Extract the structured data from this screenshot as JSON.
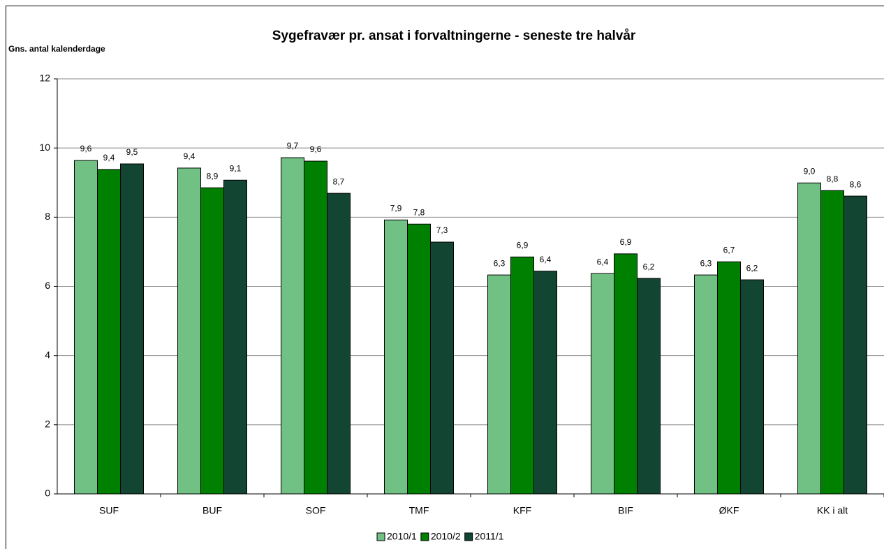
{
  "chart_data": {
    "type": "bar",
    "title": "Sygefravær pr. ansat i forvaltningerne - seneste tre halvår",
    "y_label": "Gns. antal kalenderdage",
    "categories": [
      "SUF",
      "BUF",
      "SOF",
      "TMF",
      "KFF",
      "BIF",
      "ØKF",
      "KK i alt"
    ],
    "series": [
      {
        "name": "2010/1",
        "color": "#71c184",
        "values": [
          9.64,
          9.42,
          9.72,
          7.92,
          6.33,
          6.37,
          6.33,
          8.99
        ],
        "value_labels": [
          "9,6",
          "9,4",
          "9,7",
          "7,9",
          "6,3",
          "6,4",
          "6,3",
          "9,0"
        ]
      },
      {
        "name": "2010/2",
        "color": "#008000",
        "values": [
          9.38,
          8.85,
          9.62,
          7.8,
          6.85,
          6.94,
          6.71,
          8.77
        ],
        "value_labels": [
          "9,4",
          "8,9",
          "9,6",
          "7,8",
          "6,9",
          "6,9",
          "6,7",
          "8,8"
        ]
      },
      {
        "name": "2011/1",
        "color": "#134632",
        "values": [
          9.54,
          9.07,
          8.69,
          7.28,
          6.44,
          6.23,
          6.19,
          8.61
        ],
        "value_labels": [
          "9,5",
          "9,1",
          "8,7",
          "7,3",
          "6,4",
          "6,2",
          "6,2",
          "8,6"
        ]
      }
    ],
    "ylim": [
      0,
      12
    ],
    "yticks": [
      0,
      2,
      4,
      6,
      8,
      10,
      12
    ],
    "grid": true,
    "legend": "bottom"
  }
}
